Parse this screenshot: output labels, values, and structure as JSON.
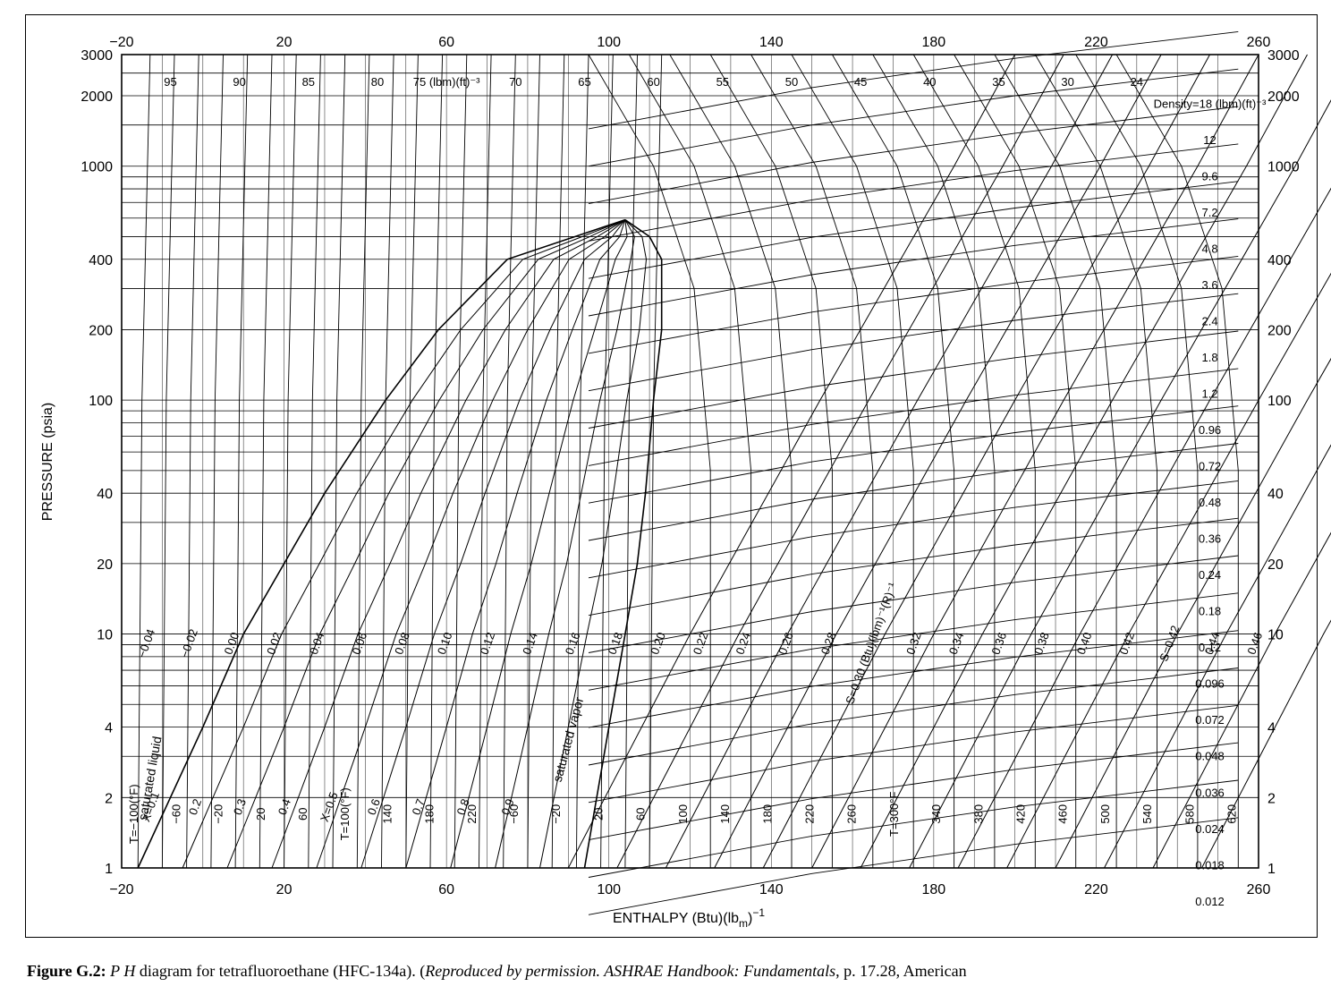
{
  "caption": {
    "figure_label": "Figure G.2:",
    "ph": "P H",
    "text": "diagram for tetrafluoroethane (HFC-134a). (",
    "permission": "Reproduced by permission. ASHRAE Handbook: Fundamentals",
    "rest": ", p. 17.28, American"
  },
  "chart_data": {
    "type": "line",
    "title": "",
    "xlabel": "ENTHALPY (Btu)(lb",
    "xlabel_sub": "m",
    "xlabel_sup": ")",
    "xlabel_exp": "−1",
    "ylabel": "PRESSURE (psia)",
    "xlim": [
      -20,
      260
    ],
    "ylim": [
      1,
      3000
    ],
    "yscale": "log",
    "x_ticks": [
      "−20",
      "20",
      "60",
      "100",
      "140",
      "180",
      "220",
      "260"
    ],
    "y_ticks": [
      "1",
      "2",
      "4",
      "10",
      "20",
      "40",
      "100",
      "200",
      "400",
      "1000",
      "2000",
      "3000"
    ],
    "y_tick_values": [
      1,
      2,
      4,
      10,
      20,
      40,
      100,
      200,
      400,
      1000,
      2000,
      3000
    ],
    "x_tick_values": [
      -20,
      20,
      60,
      100,
      140,
      180,
      220,
      260
    ],
    "grid": true,
    "critical_point": {
      "h": 104,
      "p": 590
    },
    "saturation_dome": {
      "liquid": [
        [
          -16,
          1
        ],
        [
          -8,
          2
        ],
        [
          0,
          4
        ],
        [
          10,
          10
        ],
        [
          20,
          20
        ],
        [
          30,
          40
        ],
        [
          45,
          100
        ],
        [
          58,
          200
        ],
        [
          75,
          400
        ],
        [
          104,
          590
        ]
      ],
      "vapor": [
        [
          104,
          590
        ],
        [
          110,
          500
        ],
        [
          113,
          400
        ],
        [
          113,
          200
        ],
        [
          111,
          100
        ],
        [
          109,
          40
        ],
        [
          107,
          20
        ],
        [
          104,
          10
        ],
        [
          100,
          4
        ],
        [
          97,
          2
        ],
        [
          94,
          1
        ]
      ]
    },
    "quality_labels": [
      "X=0.1",
      "0.2",
      "0.3",
      "0.4",
      "X=0.5",
      "0.6",
      "0.7",
      "0.8",
      "0.9"
    ],
    "quality_values": [
      0.1,
      0.2,
      0.3,
      0.4,
      0.5,
      0.6,
      0.7,
      0.8,
      0.9
    ],
    "density_labels": [
      "95",
      "90",
      "85",
      "80",
      "75 (lbm)(ft)⁻³",
      "70",
      "65",
      "60",
      "55",
      "50",
      "45",
      "40",
      "35",
      "30",
      "24",
      "Density=18 (lbm)(ft)⁻³",
      "12",
      "9.6",
      "7.2",
      "4.8",
      "3.6",
      "2.4",
      "1.8",
      "1.2",
      "0.96",
      "0.72",
      "0.48",
      "0.36",
      "0.24",
      "0.18",
      "0.12",
      "0.096",
      "0.072",
      "0.048",
      "0.036",
      "0.024",
      "0.018",
      "0.012"
    ],
    "entropy_labels": [
      "−0.04",
      "−0.02",
      "0.00",
      "0.02",
      "0.04",
      "0.06",
      "0.08",
      "0.10",
      "0.12",
      "0.14",
      "0.16",
      "0.18",
      "0.20",
      "0.22",
      "0.24",
      "0.26",
      "0.28",
      "S=0.30 (Btu)(lbm)⁻¹(R)⁻¹",
      "0.32",
      "0.34",
      "0.36",
      "0.38",
      "0.40",
      "0.42",
      "S=0.42",
      "0.44",
      "0.46"
    ],
    "temperature_labels": [
      "T=−100(°F)",
      "−60",
      "−20",
      "20",
      "60",
      "T=100(°F)",
      "140",
      "180",
      "220",
      "−60",
      "−20",
      "20",
      "60",
      "100",
      "140",
      "180",
      "220",
      "260",
      "T=300°F",
      "340",
      "380",
      "420",
      "460",
      "500",
      "540",
      "580",
      "620"
    ],
    "annotations": [
      "saturated liquid",
      "saturated vapor"
    ]
  }
}
